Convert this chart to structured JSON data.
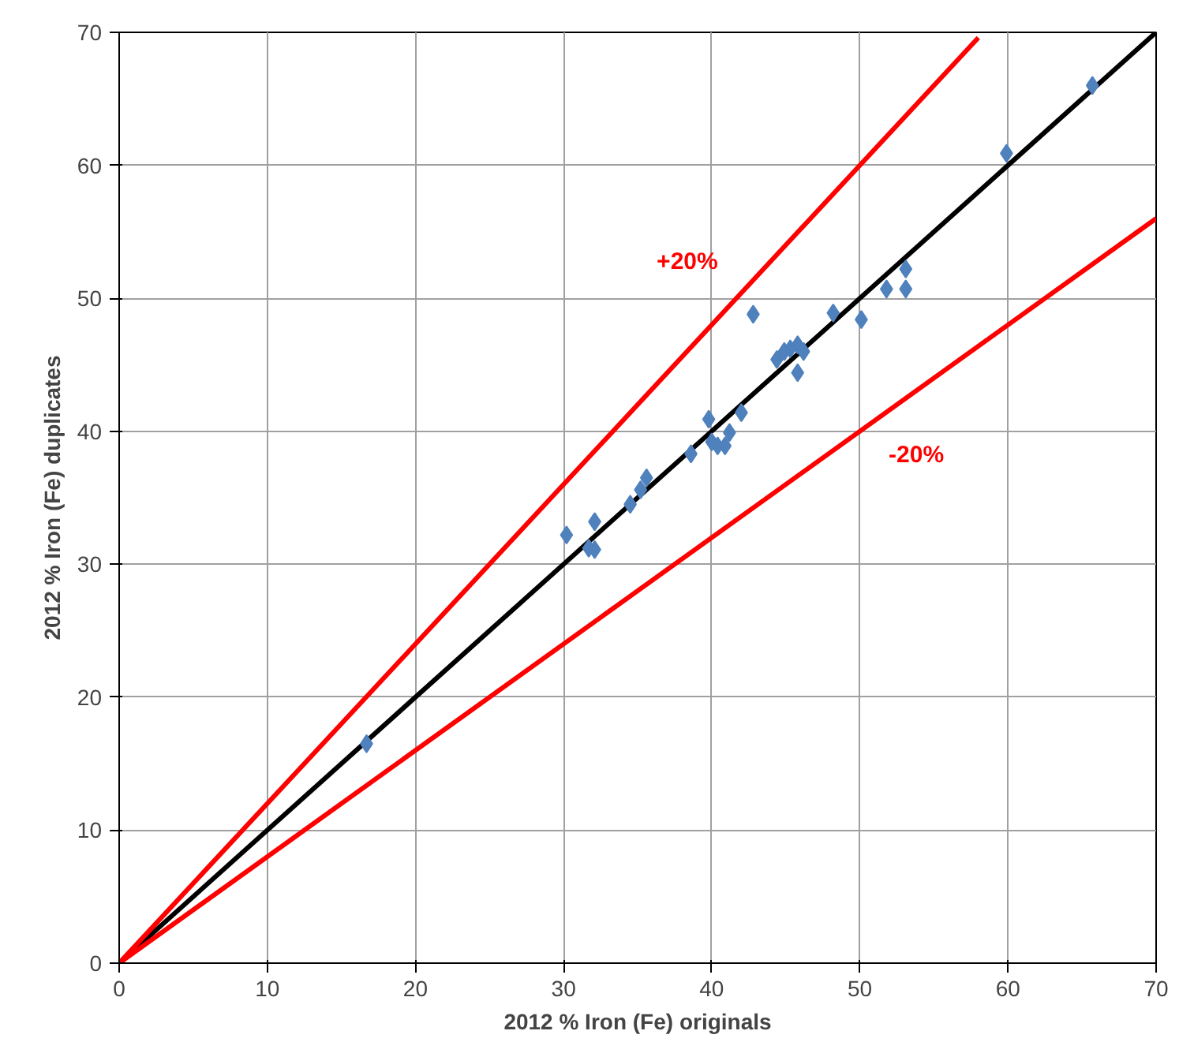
{
  "chart_data": {
    "type": "scatter",
    "xlabel": "2012 % Iron (Fe) originals",
    "ylabel": "2012 % Iron (Fe) duplicates",
    "xlim": [
      0,
      70
    ],
    "ylim": [
      0,
      70
    ],
    "xticks": [
      0,
      10,
      20,
      30,
      40,
      50,
      60,
      70
    ],
    "yticks": [
      0,
      10,
      20,
      30,
      40,
      50,
      60,
      70
    ],
    "grid": true,
    "legend": false,
    "series": [
      {
        "marker": "diamond",
        "color": "#4f81bd",
        "x": [
          16.7,
          30.2,
          32.1,
          31.7,
          32.1,
          34.5,
          35.2,
          35.6,
          38.6,
          39.8,
          40.0,
          40.4,
          40.9,
          41.2,
          42.0,
          42.8,
          44.4,
          44.9,
          45.3,
          45.8,
          46.2,
          45.8,
          48.2,
          50.1,
          51.8,
          53.1,
          53.1,
          59.9,
          65.7
        ],
        "values": [
          16.5,
          32.2,
          33.2,
          31.2,
          31.1,
          34.5,
          35.6,
          36.5,
          38.3,
          40.9,
          39.2,
          38.9,
          38.9,
          39.9,
          41.4,
          48.8,
          45.4,
          46.0,
          46.2,
          46.5,
          46.0,
          44.4,
          48.9,
          48.4,
          50.7,
          50.7,
          52.2,
          60.9,
          66.0
        ]
      },
      {
        "type": "line",
        "marker": "none",
        "color": "#000000",
        "x": [
          0,
          70
        ],
        "values": [
          0,
          70
        ]
      },
      {
        "type": "line",
        "name": "+20%",
        "marker": "none",
        "color": "#ff0000",
        "x": [
          0,
          58
        ],
        "values": [
          0,
          69.6
        ]
      },
      {
        "type": "line",
        "name": "-20%",
        "marker": "none",
        "color": "#ff0000",
        "x": [
          0,
          70
        ],
        "values": [
          0,
          56
        ]
      }
    ]
  }
}
